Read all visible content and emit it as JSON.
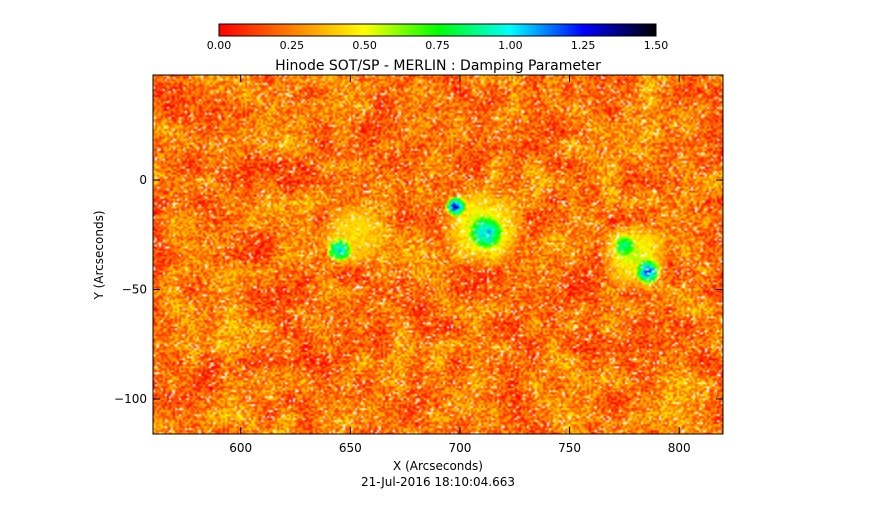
{
  "chart_data": {
    "type": "heatmap",
    "title": "Hinode SOT/SP - MERLIN : Damping Parameter",
    "xlabel": "X (Arcseconds)",
    "ylabel": "Y (Arcseconds)",
    "subtitle": "21-Jul-2016 18:10:04.663",
    "xlim": [
      560,
      820
    ],
    "ylim": [
      -116,
      48
    ],
    "x_ticks": [
      600,
      650,
      700,
      750,
      800
    ],
    "x_tick_labels": [
      "600",
      "650",
      "700",
      "750",
      "800"
    ],
    "y_ticks": [
      0,
      -50,
      -100
    ],
    "y_tick_labels": [
      "0",
      "−50",
      "−100"
    ],
    "colorbar": {
      "range": [
        0.0,
        1.5
      ],
      "ticks": [
        0.0,
        0.25,
        0.5,
        0.75,
        1.0,
        1.25,
        1.5
      ],
      "tick_labels": [
        "0.00",
        "0.25",
        "0.50",
        "0.75",
        "1.00",
        "1.25",
        "1.50"
      ],
      "colormap": [
        "#ff0000",
        "#ff7f00",
        "#ffff00",
        "#00ff00",
        "#00ffff",
        "#0000ff",
        "#000000"
      ]
    },
    "features": [
      {
        "x": 652,
        "y": -25,
        "r": 15,
        "value": 0.45
      },
      {
        "x": 645,
        "y": -32,
        "r": 6,
        "value": 1.0
      },
      {
        "x": 710,
        "y": -22,
        "r": 20,
        "value": 0.55
      },
      {
        "x": 712,
        "y": -24,
        "r": 8,
        "value": 1.05
      },
      {
        "x": 698,
        "y": -12,
        "r": 5,
        "value": 1.2
      },
      {
        "x": 780,
        "y": -35,
        "r": 17,
        "value": 0.55
      },
      {
        "x": 786,
        "y": -42,
        "r": 6,
        "value": 1.15
      },
      {
        "x": 775,
        "y": -30,
        "r": 5,
        "value": 0.9
      }
    ]
  }
}
